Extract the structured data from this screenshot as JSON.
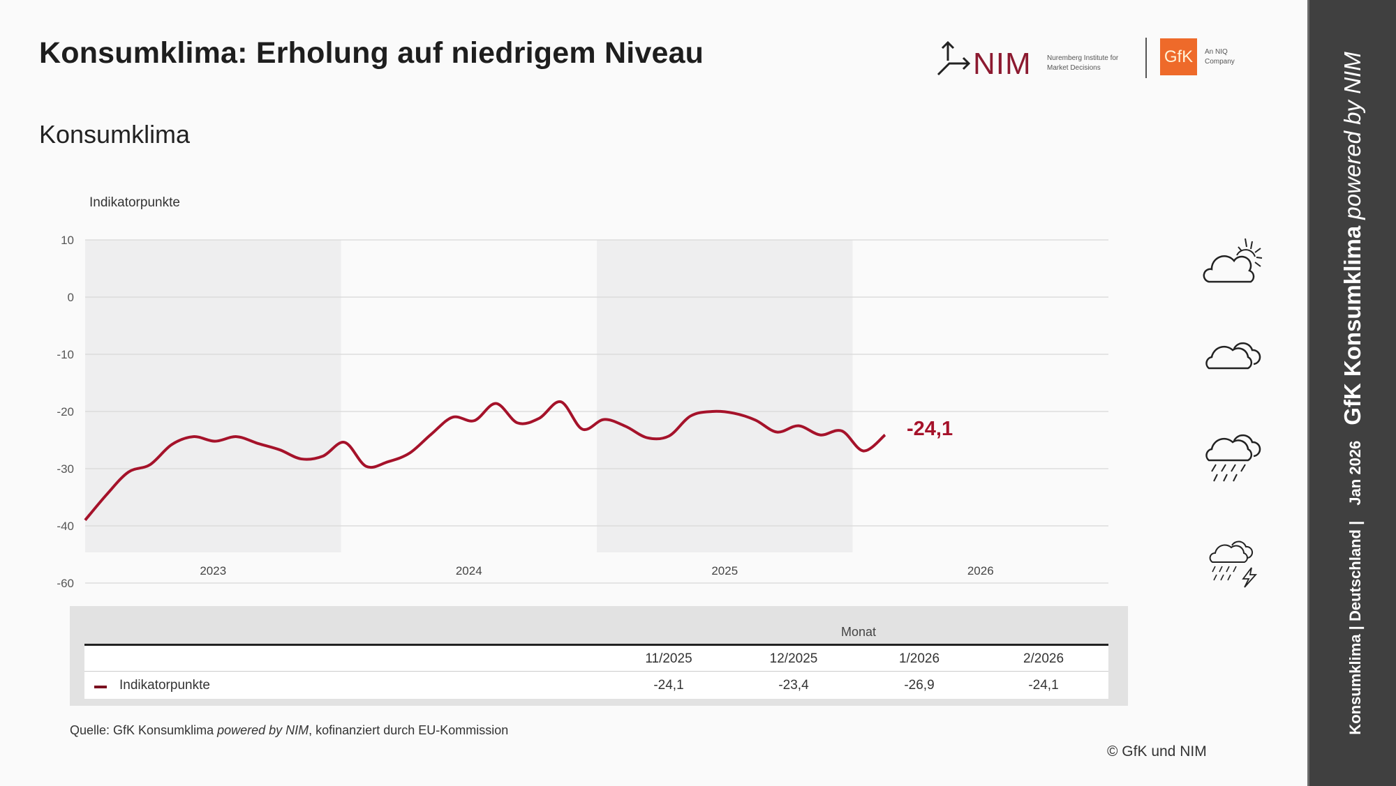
{
  "header": {
    "title": "Konsumklima: Erholung auf niedrigem Niveau",
    "subtitle": "Konsumklima"
  },
  "logos": {
    "nim_name": "NIM",
    "nim_tagline": "Nuremberg Institute for Market Decisions",
    "gfk_name": "GfK",
    "gfk_tagline": "An NIQ Company"
  },
  "chart_data": {
    "type": "line",
    "title": "Konsumklima",
    "ylabel": "Indikatorpunkte",
    "xlabel": "",
    "yticks": [
      "10",
      "0",
      "-10",
      "-20",
      "-30",
      "-40",
      "-60"
    ],
    "ylim": [
      -50,
      10
    ],
    "xticks": [
      "2023",
      "2024",
      "2025",
      "2026"
    ],
    "shaded_years": [
      "2023",
      "2025"
    ],
    "grid": true,
    "series": [
      {
        "name": "Indikatorpunkte",
        "color": "#a5122a",
        "x_start": "1/2023",
        "x_end": "2/2026",
        "values": [
          -39.0,
          -34.5,
          -30.6,
          -29.3,
          -25.8,
          -24.4,
          -25.2,
          -24.4,
          -25.6,
          -26.7,
          -28.3,
          -27.8,
          -25.4,
          -29.6,
          -28.8,
          -27.3,
          -24.0,
          -21.0,
          -21.6,
          -18.6,
          -22.0,
          -21.2,
          -18.3,
          -23.1,
          -21.4,
          -22.6,
          -24.6,
          -24.3,
          -20.8,
          -20.0,
          -20.3,
          -21.5,
          -23.6,
          -22.5,
          -24.1,
          -23.4,
          -26.9,
          -24.1
        ]
      }
    ],
    "end_label": "-24,1"
  },
  "table": {
    "group_header": "Monat",
    "columns": [
      "11/2025",
      "12/2025",
      "1/2026",
      "2/2026"
    ],
    "row_label": "Indikatorpunkte",
    "values": [
      "-24,1",
      "-23,4",
      "-26,9",
      "-24,1"
    ]
  },
  "footer": {
    "source_prefix": "Quelle: GfK Konsumklima ",
    "source_italic": "powered by NIM",
    "source_suffix": ", kofinanziert durch EU-Kommission",
    "copyright": "© GfK und NIM"
  },
  "sidebar": {
    "part1": "Konsumklima | Deutschland |",
    "part2": "Jan 2026",
    "brand": "GfK Konsumklima ",
    "brand_italic": "powered by NIM"
  },
  "weather_icons": [
    "sun-behind-cloud-icon",
    "cloudy-icon",
    "rain-cloud-icon",
    "thunderstorm-icon"
  ]
}
